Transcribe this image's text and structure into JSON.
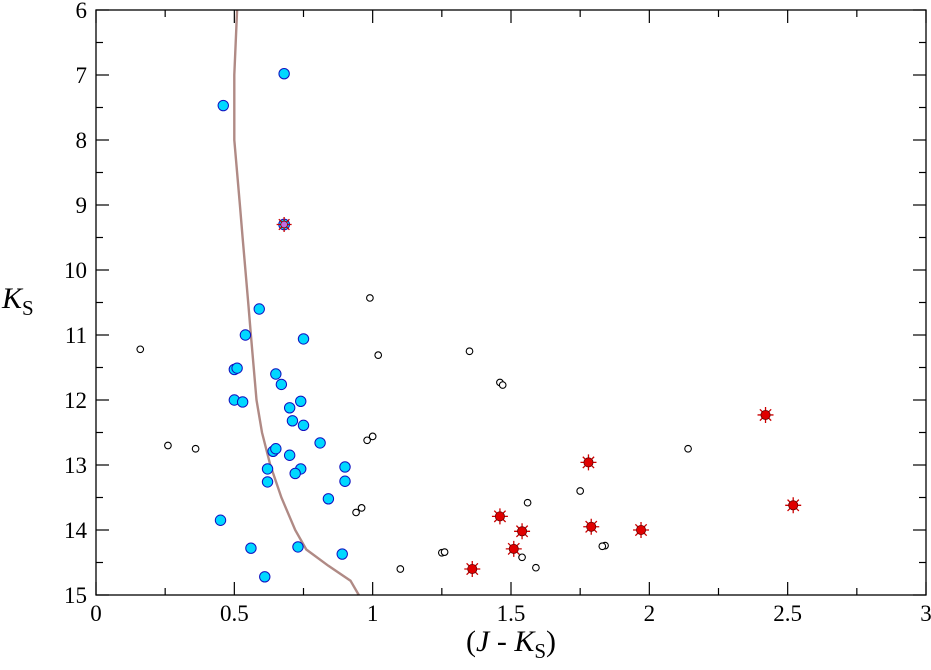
{
  "chart_data": {
    "type": "scatter",
    "title": "",
    "xlabel": {
      "open": "(",
      "var1": "J",
      "mid": " - ",
      "var2": "K",
      "sub": "S",
      "close": ")"
    },
    "ylabel": {
      "var": "K",
      "sub": "S"
    },
    "xlim": [
      0,
      3
    ],
    "ylim": [
      6,
      15
    ],
    "y_inverted": true,
    "x_major_ticks": [
      0,
      0.5,
      1,
      1.5,
      2,
      2.5,
      3
    ],
    "x_tick_labels": [
      "0",
      "0.5",
      "1",
      "1.5",
      "2",
      "2.5",
      "3"
    ],
    "x_minor_step": 0.25,
    "y_major_ticks": [
      6,
      7,
      8,
      9,
      10,
      11,
      12,
      13,
      14,
      15
    ],
    "y_tick_labels": [
      "6",
      "7",
      "8",
      "9",
      "10",
      "11",
      "12",
      "13",
      "14",
      "15"
    ],
    "y_minor_step": 0.5,
    "grid": false,
    "colors": {
      "cyan_fill": "#00d8ff",
      "cyan_stroke": "#1010c0",
      "red_fill": "#e00000",
      "red_star": "#cc0000",
      "open_stroke": "#000000",
      "curve": "#b08a85"
    },
    "series": [
      {
        "marker": "filled-circle",
        "points": [
          [
            0.68,
            6.98
          ],
          [
            0.46,
            7.47
          ],
          [
            0.59,
            10.6
          ],
          [
            0.54,
            11.0
          ],
          [
            0.75,
            11.06
          ],
          [
            0.5,
            11.53
          ],
          [
            0.51,
            11.51
          ],
          [
            0.65,
            11.6
          ],
          [
            0.67,
            11.76
          ],
          [
            0.5,
            12.0
          ],
          [
            0.53,
            12.03
          ],
          [
            0.74,
            12.02
          ],
          [
            0.7,
            12.12
          ],
          [
            0.71,
            12.32
          ],
          [
            0.75,
            12.39
          ],
          [
            0.81,
            12.66
          ],
          [
            0.64,
            12.79
          ],
          [
            0.65,
            12.75
          ],
          [
            0.7,
            12.85
          ],
          [
            0.62,
            13.06
          ],
          [
            0.74,
            13.06
          ],
          [
            0.72,
            13.13
          ],
          [
            0.9,
            13.03
          ],
          [
            0.62,
            13.26
          ],
          [
            0.9,
            13.25
          ],
          [
            0.84,
            13.52
          ],
          [
            0.45,
            13.85
          ],
          [
            0.56,
            14.28
          ],
          [
            0.73,
            14.26
          ],
          [
            0.89,
            14.37
          ],
          [
            0.61,
            14.72
          ]
        ]
      },
      {
        "marker": "star",
        "points": [
          [
            1.78,
            12.96
          ],
          [
            2.42,
            12.23
          ],
          [
            2.52,
            13.62
          ],
          [
            1.46,
            13.79
          ],
          [
            1.54,
            14.02
          ],
          [
            1.79,
            13.95
          ],
          [
            1.97,
            14.0
          ],
          [
            1.51,
            14.29
          ],
          [
            1.36,
            14.6
          ]
        ]
      },
      {
        "marker": "star-on-circle",
        "points": [
          [
            0.68,
            9.3
          ]
        ]
      },
      {
        "marker": "open-circle",
        "points": [
          [
            0.16,
            11.22
          ],
          [
            0.26,
            12.7
          ],
          [
            0.36,
            12.75
          ],
          [
            0.99,
            10.43
          ],
          [
            1.02,
            11.31
          ],
          [
            1.35,
            11.25
          ],
          [
            1.46,
            11.73
          ],
          [
            1.47,
            11.77
          ],
          [
            0.98,
            12.62
          ],
          [
            1.0,
            12.56
          ],
          [
            2.14,
            12.75
          ],
          [
            1.75,
            13.4
          ],
          [
            1.56,
            13.58
          ],
          [
            0.96,
            13.66
          ],
          [
            0.94,
            13.73
          ],
          [
            1.25,
            14.35
          ],
          [
            1.26,
            14.34
          ],
          [
            1.54,
            14.42
          ],
          [
            1.84,
            14.24
          ],
          [
            1.83,
            14.25
          ],
          [
            1.1,
            14.6
          ],
          [
            1.59,
            14.58
          ]
        ]
      },
      {
        "type": "line",
        "points": [
          [
            0.51,
            6.0
          ],
          [
            0.5,
            7.0
          ],
          [
            0.5,
            8.0
          ],
          [
            0.51,
            8.5
          ],
          [
            0.52,
            9.0
          ],
          [
            0.53,
            9.5
          ],
          [
            0.54,
            10.0
          ],
          [
            0.55,
            10.5
          ],
          [
            0.56,
            11.0
          ],
          [
            0.58,
            12.0
          ],
          [
            0.6,
            12.5
          ],
          [
            0.63,
            13.0
          ],
          [
            0.67,
            13.5
          ],
          [
            0.72,
            14.0
          ],
          [
            0.76,
            14.3
          ],
          [
            0.84,
            14.55
          ],
          [
            0.92,
            14.78
          ],
          [
            0.95,
            15.0
          ]
        ]
      }
    ]
  }
}
